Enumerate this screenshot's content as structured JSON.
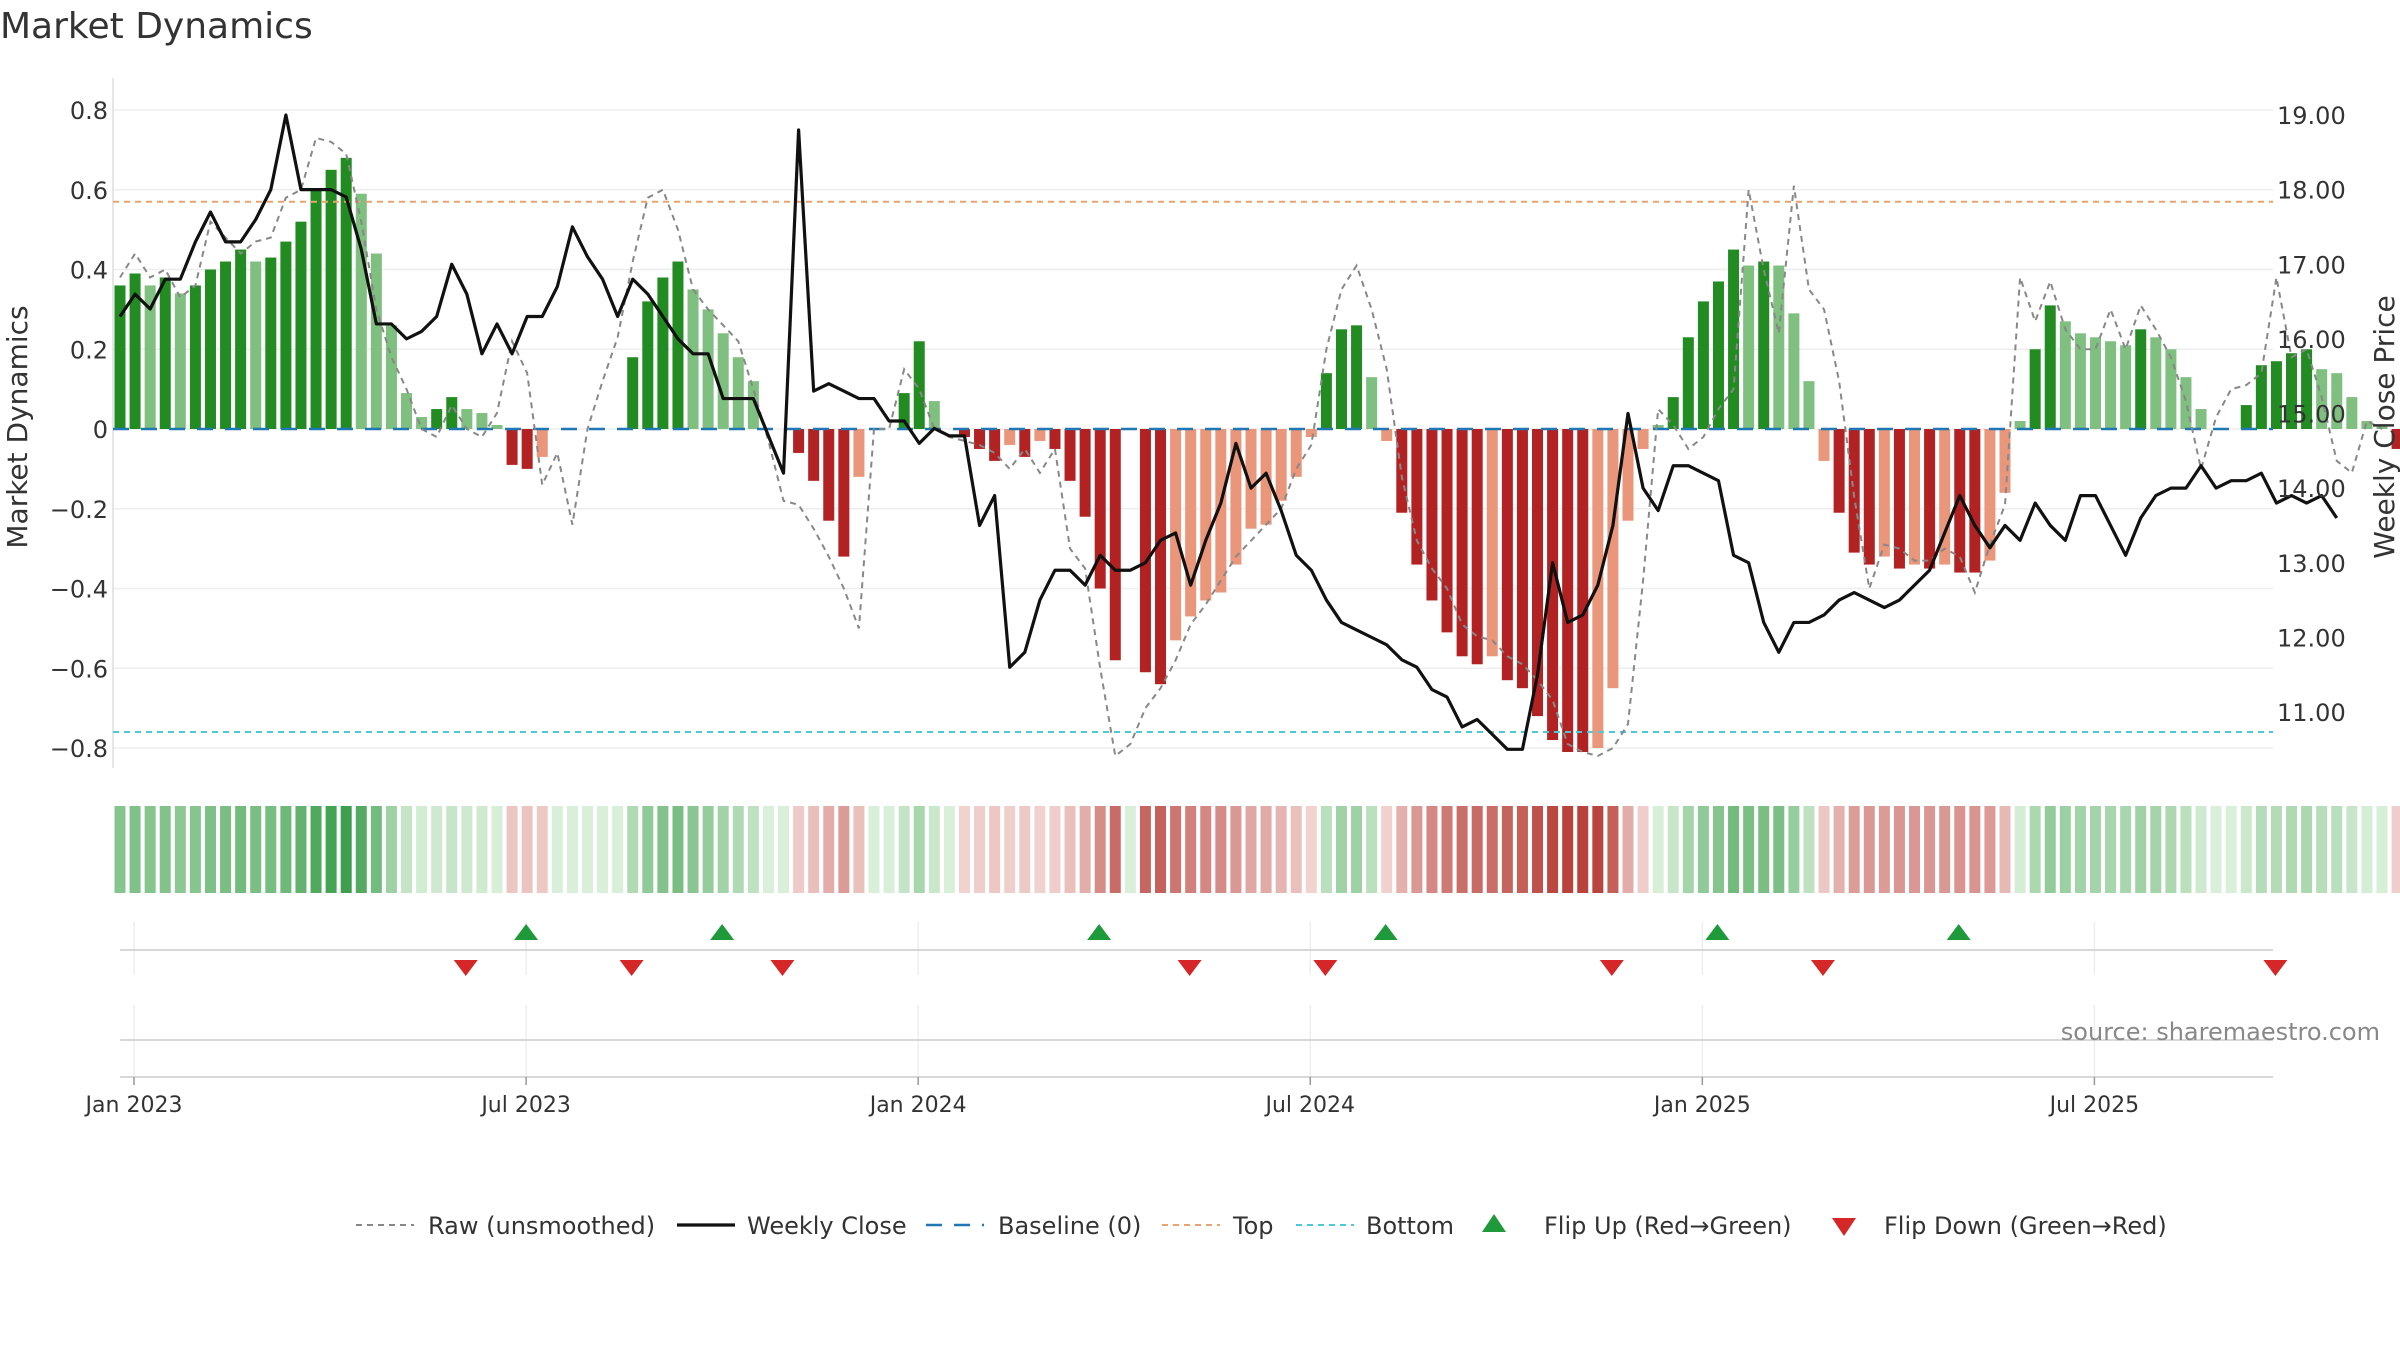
{
  "chart_data": {
    "type": "bar",
    "title": "Market Dynamics",
    "ylabel_left": "Market Dynamics",
    "ylabel_right": "Weekly Close Price",
    "ylim_left": [
      -0.88,
      0.88
    ],
    "ylim_right": [
      10.0,
      19.4
    ],
    "yticks_left": [
      0.8,
      0.6,
      0.4,
      0.2,
      0,
      -0.2,
      -0.4,
      -0.6,
      -0.8
    ],
    "ytick_labels_left": [
      "0.8",
      "0.6",
      "0.4",
      "0.2",
      "0",
      "−0.2",
      "−0.4",
      "−0.6",
      "−0.8"
    ],
    "yticks_right": [
      19,
      18,
      17,
      16,
      15,
      14,
      13,
      12,
      11
    ],
    "ytick_labels_right": [
      "19.00",
      "18.00",
      "17.00",
      "16.00",
      "15.00",
      "14.00",
      "13.00",
      "12.00",
      "11.00"
    ],
    "xticks": [
      "Jan 2023",
      "Jul 2023",
      "Jan 2024",
      "Jul 2024",
      "Jan 2025",
      "Jul 2025"
    ],
    "xtick_week_index": [
      0,
      26,
      52,
      78,
      104,
      130
    ],
    "start": "2023-01-01",
    "week_count": 144,
    "top_level": 0.57,
    "bottom_level": -0.76,
    "source_text": "source: sharemaestro.com",
    "legend": {
      "raw": "Raw (unsmoothed)",
      "close": "Weekly Close",
      "baseline": "Baseline (0)",
      "top": "Top",
      "bottom": "Bottom",
      "flip_up": "Flip Up (Red→Green)",
      "flip_down": "Flip Down (Green→Red)"
    },
    "colors": {
      "green_strong": "#228B22",
      "green_light": "#7FBF7F",
      "red_strong": "#B22222",
      "red_light": "#E9967A",
      "close": "#111111",
      "raw": "#888888",
      "baseline": "#1f77b4",
      "top": "#E9A36E",
      "bottom": "#4CC9D6",
      "flip_up": "#1F9A3A",
      "flip_down": "#D62728"
    },
    "dynamics": [
      0.36,
      0.39,
      0.36,
      0.38,
      0.34,
      0.36,
      0.4,
      0.42,
      0.45,
      0.42,
      0.43,
      0.47,
      0.52,
      0.6,
      0.65,
      0.68,
      0.59,
      0.44,
      0.26,
      0.09,
      0.03,
      0.05,
      0.08,
      0.05,
      0.04,
      0.01,
      -0.09,
      -0.1,
      -0.07,
      0.0,
      0.0,
      0.0,
      0.0,
      0.0,
      0.18,
      0.32,
      0.38,
      0.42,
      0.35,
      0.3,
      0.24,
      0.18,
      0.12,
      0.0,
      0.0,
      -0.06,
      -0.13,
      -0.23,
      -0.32,
      -0.12,
      0.0,
      0.0,
      0.09,
      0.22,
      0.07,
      0.0,
      -0.02,
      -0.05,
      -0.08,
      -0.04,
      -0.07,
      -0.03,
      -0.05,
      -0.13,
      -0.22,
      -0.4,
      -0.58,
      0.0,
      -0.61,
      -0.64,
      -0.53,
      -0.47,
      -0.43,
      -0.41,
      -0.34,
      -0.25,
      -0.24,
      -0.18,
      -0.12,
      -0.02,
      0.14,
      0.25,
      0.26,
      0.13,
      -0.03,
      -0.21,
      -0.34,
      -0.43,
      -0.51,
      -0.57,
      -0.59,
      -0.57,
      -0.63,
      -0.65,
      -0.72,
      -0.78,
      -0.81,
      -0.81,
      -0.8,
      -0.65,
      -0.23,
      -0.05,
      0.01,
      0.08,
      0.23,
      0.32,
      0.37,
      0.45,
      0.41,
      0.42,
      0.41,
      0.29,
      0.12,
      -0.08,
      -0.21,
      -0.31,
      -0.34,
      -0.32,
      -0.35,
      -0.34,
      -0.35,
      -0.34,
      -0.36,
      -0.36,
      -0.33,
      -0.16,
      0.02,
      0.2,
      0.31,
      0.27,
      0.24,
      0.23,
      0.22,
      0.21,
      0.25,
      0.23,
      0.2,
      0.13,
      0.05,
      0.0,
      0.0,
      0.06,
      0.16,
      0.17,
      0.19,
      0.2,
      0.15,
      0.14,
      0.08,
      0.02,
      0.01,
      -0.05
    ],
    "raw": [
      0.38,
      0.44,
      0.38,
      0.4,
      0.33,
      0.36,
      0.52,
      0.48,
      0.44,
      0.47,
      0.48,
      0.58,
      0.6,
      0.73,
      0.72,
      0.69,
      0.52,
      0.3,
      0.18,
      0.1,
      0.0,
      -0.02,
      0.06,
      0.0,
      -0.02,
      0.04,
      0.22,
      0.14,
      -0.14,
      -0.06,
      -0.24,
      0.0,
      0.12,
      0.23,
      0.42,
      0.58,
      0.6,
      0.5,
      0.35,
      0.3,
      0.26,
      0.22,
      0.1,
      -0.03,
      -0.18,
      -0.19,
      -0.25,
      -0.32,
      -0.4,
      -0.5,
      0.0,
      0.0,
      0.15,
      0.1,
      0.0,
      -0.02,
      -0.03,
      -0.04,
      -0.06,
      -0.1,
      -0.05,
      -0.11,
      -0.05,
      -0.3,
      -0.35,
      -0.6,
      -0.82,
      -0.79,
      -0.7,
      -0.65,
      -0.58,
      -0.49,
      -0.44,
      -0.38,
      -0.32,
      -0.28,
      -0.24,
      -0.2,
      -0.1,
      -0.04,
      0.2,
      0.35,
      0.41,
      0.3,
      0.15,
      -0.12,
      -0.28,
      -0.35,
      -0.4,
      -0.49,
      -0.52,
      -0.53,
      -0.57,
      -0.59,
      -0.63,
      -0.68,
      -0.79,
      -0.81,
      -0.82,
      -0.8,
      -0.74,
      -0.38,
      0.05,
      0.01,
      -0.05,
      -0.02,
      0.05,
      0.1,
      0.6,
      0.4,
      0.24,
      0.61,
      0.35,
      0.3,
      0.12,
      -0.17,
      -0.4,
      -0.29,
      -0.3,
      -0.33,
      -0.33,
      -0.3,
      -0.32,
      -0.41,
      -0.29,
      -0.19,
      0.38,
      0.27,
      0.37,
      0.25,
      0.2,
      0.2,
      0.3,
      0.2,
      0.31,
      0.25,
      0.18,
      0.07,
      -0.1,
      0.03,
      0.1,
      0.11,
      0.14,
      0.38,
      0.18,
      0.2,
      0.08,
      -0.08,
      -0.11,
      0.02,
      0.0
    ],
    "close": [
      16.3,
      16.6,
      16.4,
      16.8,
      16.8,
      17.3,
      17.7,
      17.3,
      17.3,
      17.6,
      18.0,
      19.0,
      18.0,
      18.0,
      18.0,
      17.9,
      17.2,
      16.2,
      16.2,
      16.0,
      16.1,
      16.3,
      17.0,
      16.6,
      15.8,
      16.2,
      15.8,
      16.3,
      16.3,
      16.7,
      17.5,
      17.1,
      16.8,
      16.3,
      16.8,
      16.6,
      16.3,
      16.0,
      15.8,
      15.8,
      15.2,
      15.2,
      15.2,
      14.7,
      14.2,
      18.8,
      15.3,
      15.4,
      15.3,
      15.2,
      15.2,
      14.9,
      14.9,
      14.6,
      14.8,
      14.7,
      14.7,
      13.5,
      13.9,
      11.6,
      11.8,
      12.5,
      12.9,
      12.9,
      12.7,
      13.1,
      12.9,
      12.9,
      13.0,
      13.3,
      13.4,
      12.7,
      13.3,
      13.8,
      14.6,
      14.0,
      14.2,
      13.7,
      13.1,
      12.9,
      12.5,
      12.2,
      12.1,
      12.0,
      11.9,
      11.7,
      11.6,
      11.3,
      11.2,
      10.8,
      10.9,
      10.7,
      10.5,
      10.5,
      11.5,
      13.0,
      12.2,
      12.3,
      12.7,
      13.5,
      15.0,
      14.0,
      13.7,
      14.3,
      14.3,
      14.2,
      14.1,
      13.1,
      13.0,
      12.2,
      11.8,
      12.2,
      12.2,
      12.3,
      12.5,
      12.6,
      12.5,
      12.4,
      12.5,
      12.7,
      12.9,
      13.4,
      13.9,
      13.5,
      13.2,
      13.5,
      13.3,
      13.8,
      13.5,
      13.3,
      13.9,
      13.9,
      13.5,
      13.1,
      13.6,
      13.9,
      14.0,
      14.0,
      14.3,
      14.0,
      14.1,
      14.1,
      14.2,
      13.8,
      13.9,
      13.8,
      13.9,
      13.6
    ],
    "flips_up_week": [
      26,
      39,
      64,
      83,
      105,
      121
    ],
    "flips_down_week": [
      22,
      33,
      43,
      70,
      79,
      98,
      112,
      142
    ]
  }
}
